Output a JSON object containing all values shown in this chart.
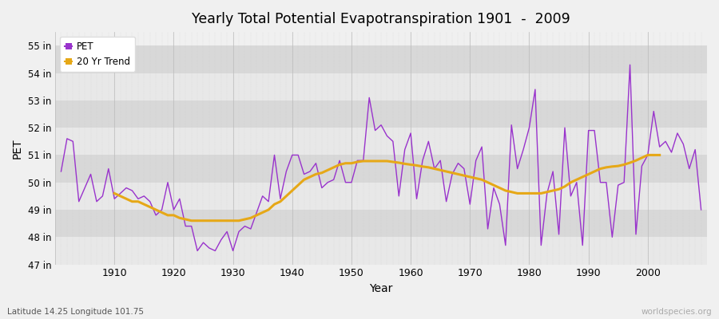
{
  "title": "Yearly Total Potential Evapotranspiration 1901  -  2009",
  "xlabel": "Year",
  "ylabel": "PET",
  "subtitle": "Latitude 14.25 Longitude 101.75",
  "watermark": "worldspecies.org",
  "pet_color": "#9933cc",
  "trend_color": "#e6a817",
  "bg_color": "#f0f0f0",
  "band_color_light": "#e8e8e8",
  "band_color_dark": "#d8d8d8",
  "grid_color": "#cccccc",
  "ylim": [
    47,
    55.5
  ],
  "ytick_labels": [
    "47 in",
    "48 in",
    "49 in",
    "50 in",
    "51 in",
    "52 in",
    "53 in",
    "54 in",
    "55 in"
  ],
  "ytick_values": [
    47,
    48,
    49,
    50,
    51,
    52,
    53,
    54,
    55
  ],
  "years": [
    1901,
    1902,
    1903,
    1904,
    1905,
    1906,
    1907,
    1908,
    1909,
    1910,
    1911,
    1912,
    1913,
    1914,
    1915,
    1916,
    1917,
    1918,
    1919,
    1920,
    1921,
    1922,
    1923,
    1924,
    1925,
    1926,
    1927,
    1928,
    1929,
    1930,
    1931,
    1932,
    1933,
    1934,
    1935,
    1936,
    1937,
    1938,
    1939,
    1940,
    1941,
    1942,
    1943,
    1944,
    1945,
    1946,
    1947,
    1948,
    1949,
    1950,
    1951,
    1952,
    1953,
    1954,
    1955,
    1956,
    1957,
    1958,
    1959,
    1960,
    1961,
    1962,
    1963,
    1964,
    1965,
    1966,
    1967,
    1968,
    1969,
    1970,
    1971,
    1972,
    1973,
    1974,
    1975,
    1976,
    1977,
    1978,
    1979,
    1980,
    1981,
    1982,
    1983,
    1984,
    1985,
    1986,
    1987,
    1988,
    1989,
    1990,
    1991,
    1992,
    1993,
    1994,
    1995,
    1996,
    1997,
    1998,
    1999,
    2000,
    2001,
    2002,
    2003,
    2004,
    2005,
    2006,
    2007,
    2008,
    2009
  ],
  "pet_values": [
    50.4,
    51.6,
    51.5,
    49.3,
    49.8,
    50.3,
    49.3,
    49.5,
    50.5,
    49.4,
    49.6,
    49.8,
    49.7,
    49.4,
    49.5,
    49.3,
    48.8,
    49.0,
    50.0,
    49.0,
    49.4,
    48.4,
    48.4,
    47.5,
    47.8,
    47.6,
    47.5,
    47.9,
    48.2,
    47.5,
    48.2,
    48.4,
    48.3,
    48.9,
    49.5,
    49.3,
    51.0,
    49.4,
    50.4,
    51.0,
    51.0,
    50.3,
    50.4,
    50.7,
    49.8,
    50.0,
    50.1,
    50.8,
    50.0,
    50.0,
    50.8,
    50.8,
    53.1,
    51.9,
    52.1,
    51.7,
    51.5,
    49.5,
    51.2,
    51.8,
    49.4,
    50.8,
    51.5,
    50.5,
    50.8,
    49.3,
    50.3,
    50.7,
    50.5,
    49.2,
    50.8,
    51.3,
    48.3,
    49.8,
    49.2,
    47.7,
    52.1,
    50.5,
    51.2,
    52.0,
    53.4,
    47.7,
    49.6,
    50.4,
    48.1,
    52.0,
    49.5,
    50.0,
    47.7,
    51.9,
    51.9,
    50.0,
    50.0,
    48.0,
    49.9,
    50.0,
    54.3,
    48.1,
    50.6,
    51.0,
    52.6,
    51.3,
    51.5,
    51.1,
    51.8,
    51.4,
    50.5,
    51.2,
    49.0
  ],
  "trend_values": [
    null,
    null,
    null,
    null,
    null,
    null,
    null,
    null,
    null,
    49.6,
    49.5,
    49.4,
    49.3,
    49.3,
    49.2,
    49.1,
    49.0,
    48.9,
    48.8,
    48.8,
    48.7,
    48.65,
    48.6,
    48.6,
    48.6,
    48.6,
    48.6,
    48.6,
    48.6,
    48.6,
    48.6,
    48.65,
    48.7,
    48.8,
    48.9,
    49.0,
    49.2,
    49.3,
    49.5,
    49.7,
    49.9,
    50.1,
    50.2,
    50.3,
    50.35,
    50.45,
    50.55,
    50.65,
    50.7,
    50.7,
    50.75,
    50.78,
    50.78,
    50.78,
    50.78,
    50.78,
    50.75,
    50.72,
    50.68,
    50.65,
    50.62,
    50.58,
    50.55,
    50.5,
    50.45,
    50.4,
    50.35,
    50.3,
    50.25,
    50.2,
    50.15,
    50.1,
    50.0,
    49.9,
    49.8,
    49.7,
    49.65,
    49.6,
    49.6,
    49.6,
    49.6,
    49.6,
    49.65,
    49.7,
    49.75,
    49.85,
    50.0,
    50.1,
    50.2,
    50.3,
    50.4,
    50.5,
    50.55,
    50.58,
    50.6,
    50.65,
    50.72,
    50.8,
    50.9,
    51.0,
    51.0,
    51.0,
    null,
    null,
    null,
    null,
    null,
    null,
    null
  ]
}
